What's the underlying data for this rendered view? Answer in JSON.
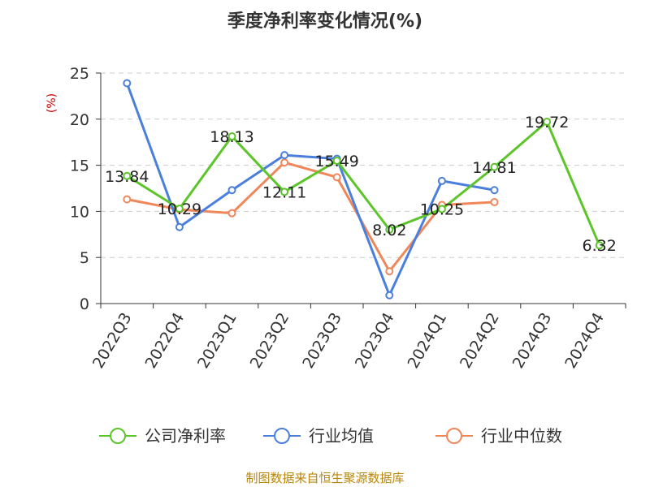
{
  "chart_data": {
    "type": "line",
    "title": "季度净利率变化情况(%)",
    "ylabel": "(%)",
    "xlabel": "",
    "ylim": [
      0,
      25
    ],
    "yticks": [
      0,
      5,
      10,
      15,
      20,
      25
    ],
    "grid": "horizontal-dashed",
    "legend_position": "bottom",
    "categories": [
      "2022Q3",
      "2022Q4",
      "2023Q1",
      "2023Q2",
      "2023Q3",
      "2023Q4",
      "2024Q1",
      "2024Q2",
      "2024Q3",
      "2024Q4"
    ],
    "series": [
      {
        "name": "公司净利率",
        "color": "#5cc52a",
        "values": [
          13.84,
          10.29,
          18.13,
          12.11,
          15.49,
          8.02,
          10.25,
          14.81,
          19.72,
          6.32
        ],
        "labels": [
          "13.84",
          "10.29",
          "18.13",
          "12.11",
          "15.49",
          "8.02",
          "10.25",
          "14.81",
          "19.72",
          "6.32"
        ]
      },
      {
        "name": "行业均值",
        "color": "#4a7fdc",
        "values": [
          23.9,
          8.3,
          12.3,
          16.1,
          15.7,
          0.9,
          13.3,
          12.3,
          null,
          null
        ]
      },
      {
        "name": "行业中位数",
        "color": "#f0875a",
        "values": [
          11.3,
          10.2,
          9.8,
          15.3,
          13.7,
          3.5,
          10.7,
          11.0,
          null,
          null
        ]
      }
    ],
    "source": "制图数据来自恒生聚源数据库"
  }
}
